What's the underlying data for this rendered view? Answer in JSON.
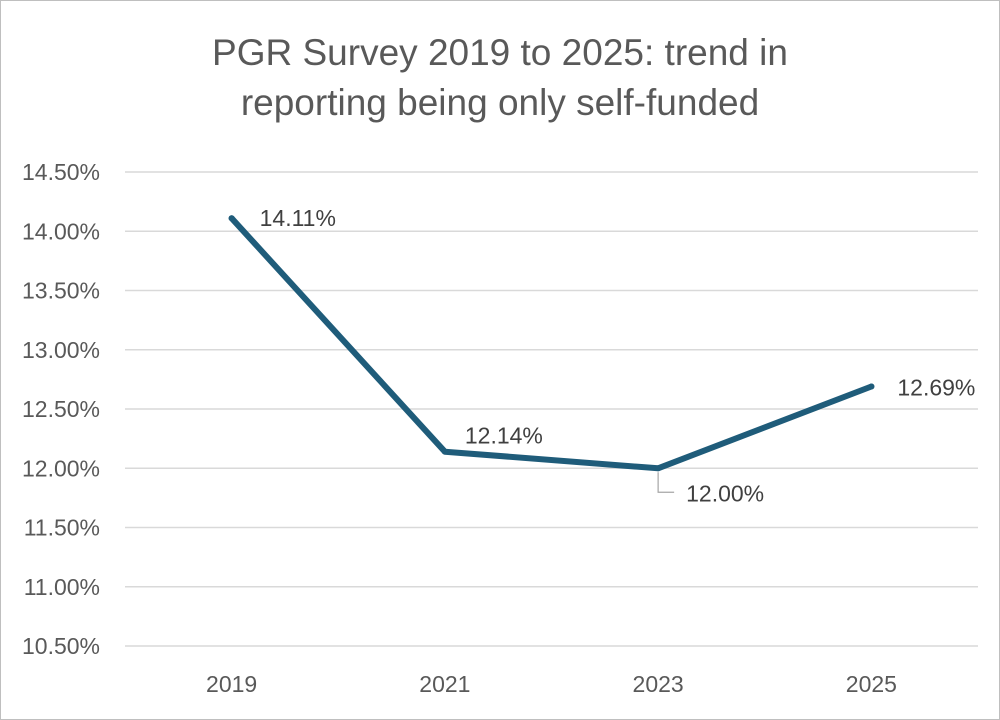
{
  "chart_data": {
    "type": "line",
    "title_lines": [
      "PGR Survey 2019 to 2025: trend in",
      "reporting being only self-funded"
    ],
    "categories": [
      "2019",
      "2021",
      "2023",
      "2025"
    ],
    "series": [
      {
        "values": [
          14.11,
          12.14,
          12.0,
          12.69
        ]
      }
    ],
    "data_labels": [
      "14.11%",
      "12.14%",
      "12.00%",
      "12.69%"
    ],
    "y_ticks": [
      14.5,
      14.0,
      13.5,
      13.0,
      12.5,
      12.0,
      11.5,
      11.0,
      10.5
    ],
    "y_tick_labels": [
      "14.50%",
      "14.00%",
      "13.50%",
      "13.00%",
      "12.50%",
      "12.00%",
      "11.50%",
      "11.00%",
      "10.50%"
    ],
    "ylim": [
      10.5,
      14.5
    ],
    "grid": true,
    "legend": "none",
    "line_color": "#1f5c7a",
    "grid_color": "#d9d9d9"
  }
}
